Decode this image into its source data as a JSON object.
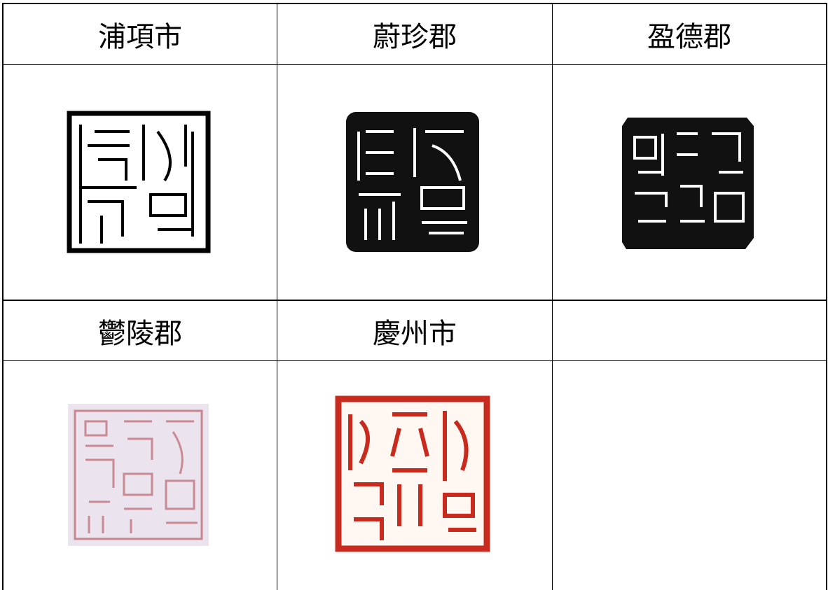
{
  "table": {
    "rows": [
      [
        "浦項市",
        "蔚珍郡",
        "盈德郡"
      ],
      [
        "鬱陵郡",
        "慶州市"
      ]
    ]
  }
}
